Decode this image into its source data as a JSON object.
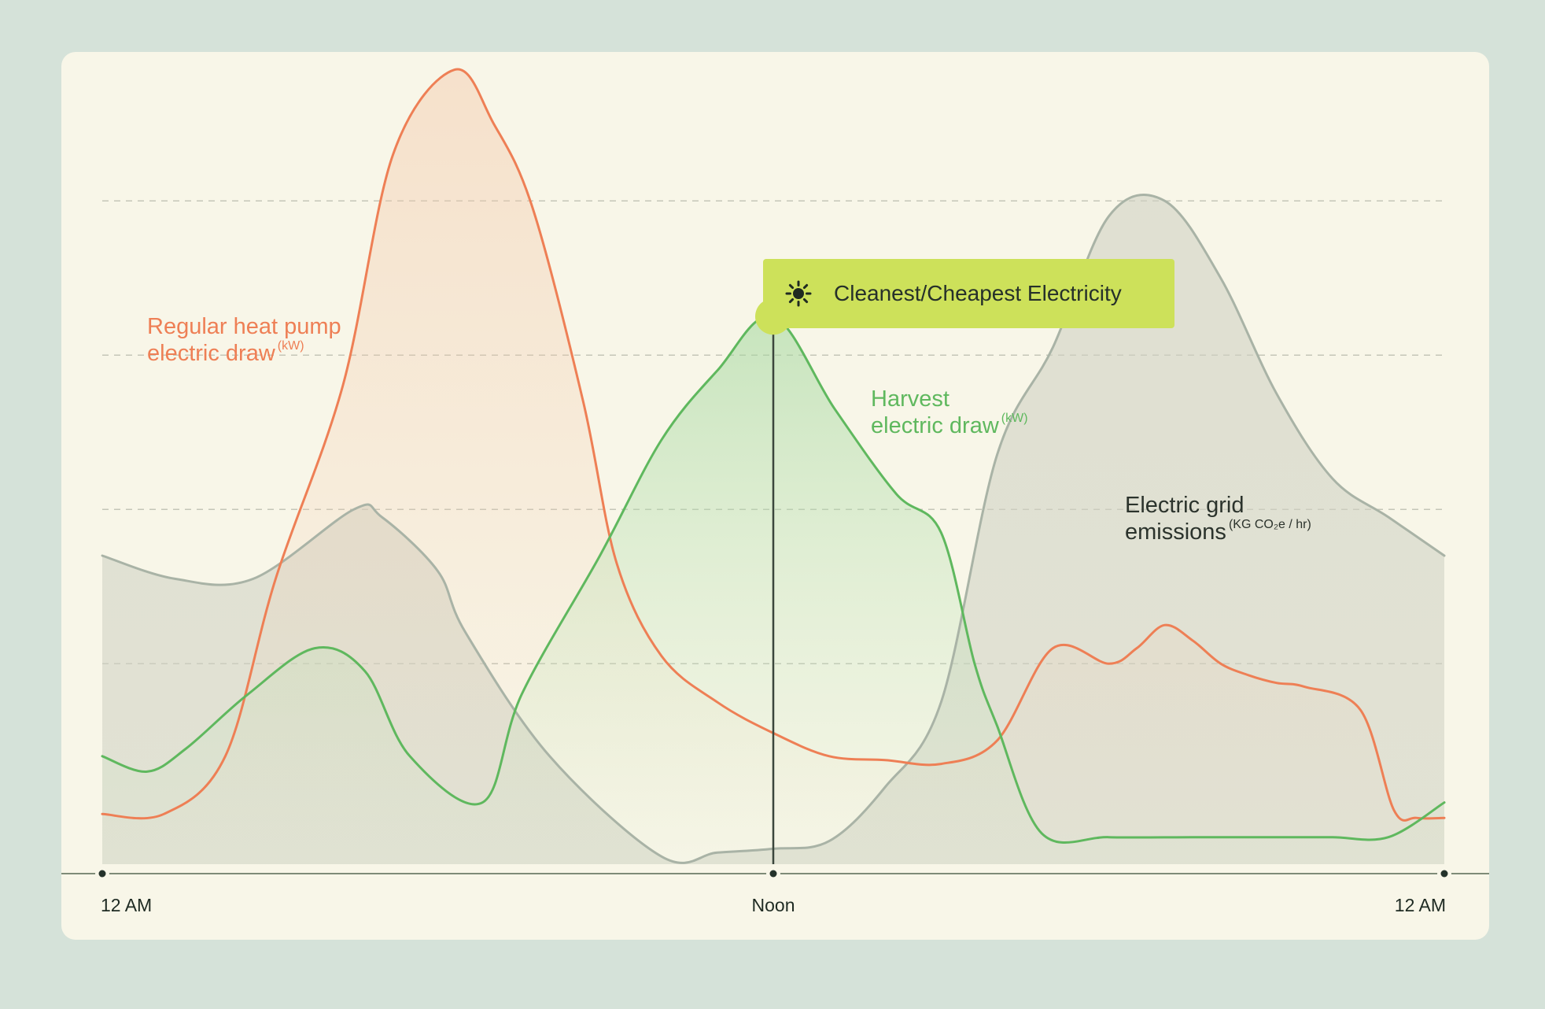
{
  "chart_data": {
    "type": "area",
    "title": "",
    "xlabel": "",
    "ylabel": "",
    "x_ticks": [
      "12 AM",
      "Noon",
      "12 AM"
    ],
    "x_range_hours": [
      0,
      24
    ],
    "y_range": [
      0,
      1
    ],
    "grid": "horizontal dashed",
    "highlight": {
      "label": "Cleanest/Cheapest Electricity",
      "icon": "sun-icon",
      "x_hours": 12,
      "color": "#cde15a"
    },
    "series": [
      {
        "name_main": "Regular heat pump electric draw",
        "name_line1": "Regular heat pump",
        "name_line2": "electric draw",
        "unit": "(kW)",
        "color": "#ee7f55",
        "x": [
          0,
          1.1,
          2.2,
          3.1,
          4.3,
          5.2,
          6.3,
          7.0,
          7.7,
          8.6,
          9.2,
          10.0,
          11.0,
          12.0,
          13.0,
          14.0,
          15.0,
          16.0,
          17.0,
          18.0,
          18.5,
          19.0,
          19.5,
          20.0,
          20.5,
          21.0,
          21.5,
          22.5,
          23.1,
          23.5,
          24.0
        ],
        "y": [
          0.065,
          0.065,
          0.14,
          0.37,
          0.62,
          0.92,
          1.03,
          0.96,
          0.85,
          0.6,
          0.39,
          0.27,
          0.21,
          0.17,
          0.14,
          0.135,
          0.13,
          0.16,
          0.28,
          0.26,
          0.28,
          0.31,
          0.29,
          0.26,
          0.245,
          0.235,
          0.23,
          0.2,
          0.07,
          0.06,
          0.06
        ]
      },
      {
        "name_main": "Harvest electric draw",
        "name_line1": "Harvest",
        "name_line2": "electric draw",
        "unit": "(kW)",
        "color": "#5fb85e",
        "x": [
          0,
          0.8,
          1.5,
          2.6,
          3.8,
          4.7,
          5.5,
          6.8,
          7.5,
          8.9,
          10.0,
          11.0,
          12.0,
          13.1,
          14.2,
          15.0,
          15.6,
          16.0,
          16.8,
          18.0,
          19.5,
          21.0,
          22.0,
          23.0,
          24.0
        ],
        "y": [
          0.14,
          0.12,
          0.15,
          0.22,
          0.28,
          0.25,
          0.14,
          0.08,
          0.22,
          0.4,
          0.55,
          0.64,
          0.71,
          0.59,
          0.48,
          0.43,
          0.26,
          0.18,
          0.04,
          0.035,
          0.035,
          0.035,
          0.035,
          0.035,
          0.08
        ]
      },
      {
        "name_main": "Electric grid emissions",
        "name_line1": "Electric grid",
        "name_line2": "emissions",
        "unit": "(KG CO₂e / hr)",
        "color": "#a9b3a6",
        "x": [
          0,
          1.3,
          2.7,
          4.5,
          5.0,
          6.0,
          6.5,
          8.0,
          10.0,
          11.0,
          12.0,
          13.0,
          14.0,
          15.0,
          16.0,
          17.0,
          18.0,
          19.0,
          20.0,
          21.0,
          22.0,
          23.0,
          24.0
        ],
        "y": [
          0.4,
          0.37,
          0.37,
          0.46,
          0.45,
          0.38,
          0.3,
          0.14,
          0.01,
          0.015,
          0.02,
          0.03,
          0.1,
          0.21,
          0.53,
          0.67,
          0.84,
          0.86,
          0.76,
          0.61,
          0.5,
          0.45,
          0.4
        ]
      }
    ]
  }
}
